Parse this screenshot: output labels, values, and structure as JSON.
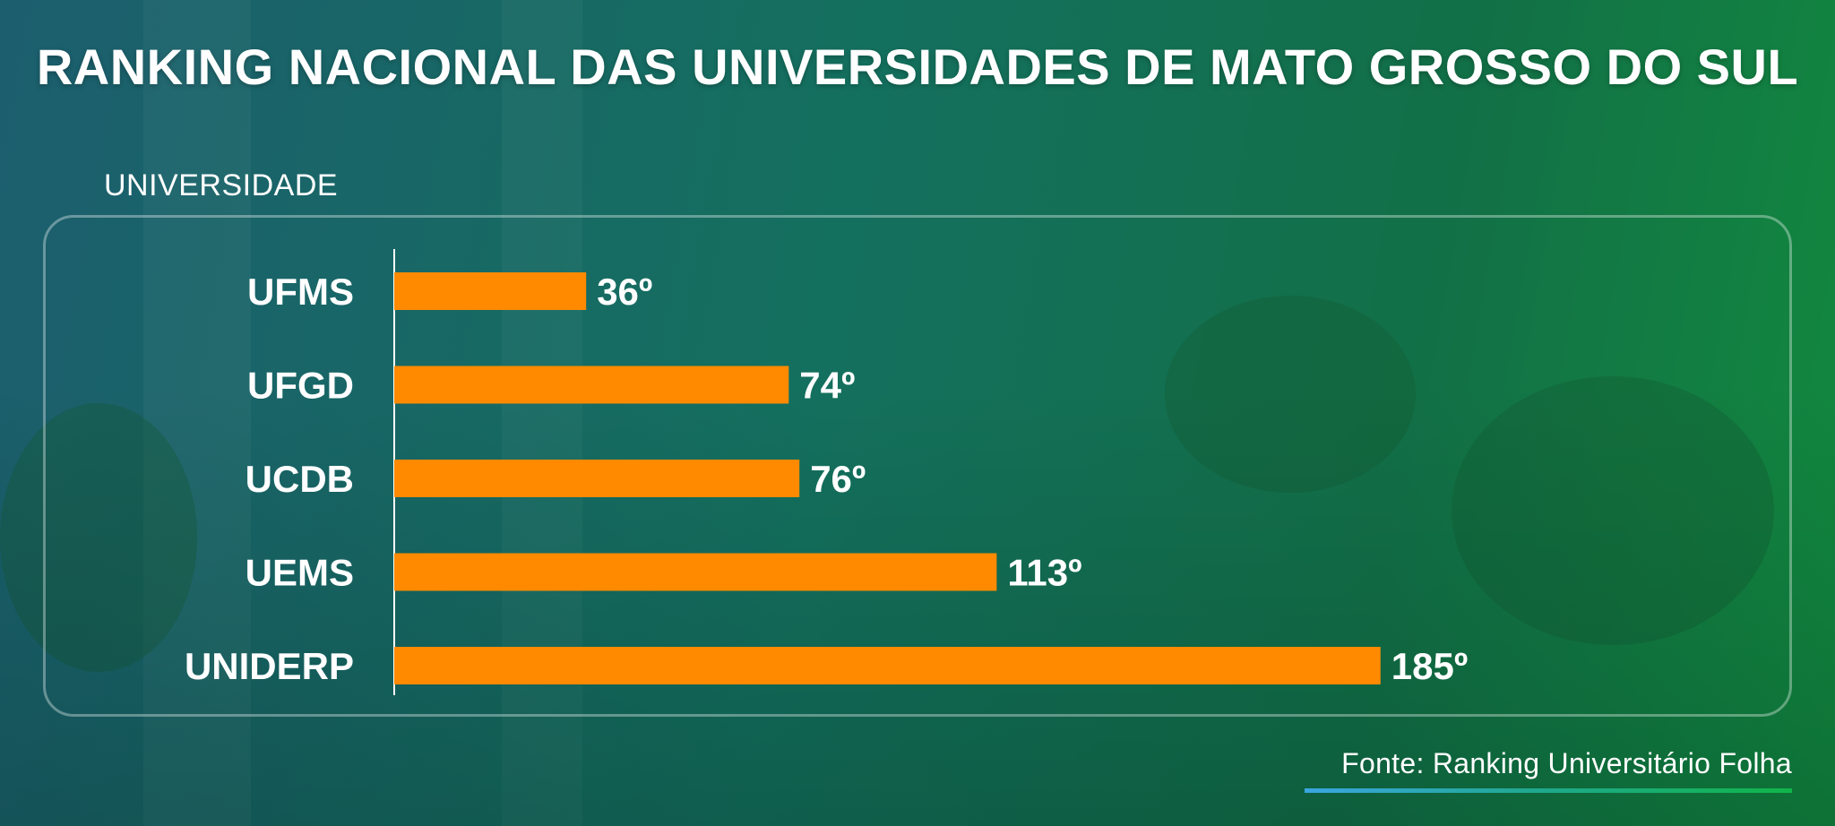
{
  "title": "RANKING NACIONAL DAS UNIVERSIDADES DE MATO GROSSO DO SUL",
  "source": "Fonte: Ranking Universitário Folha",
  "colors": {
    "bar": "#ff8a00",
    "text": "#ffffff",
    "axis_line": "#ffffff"
  },
  "chart_data": {
    "type": "bar",
    "orientation": "horizontal",
    "ylabel": "UNIVERSIDADE",
    "categories": [
      "UFMS",
      "UFGD",
      "UCDB",
      "UEMS",
      "UNIDERP"
    ],
    "values": [
      36,
      74,
      76,
      113,
      185
    ],
    "value_labels": [
      "36º",
      "74º",
      "76º",
      "113º",
      "185º"
    ],
    "xlim": [
      0,
      210
    ],
    "grid": false,
    "legend": "none"
  }
}
